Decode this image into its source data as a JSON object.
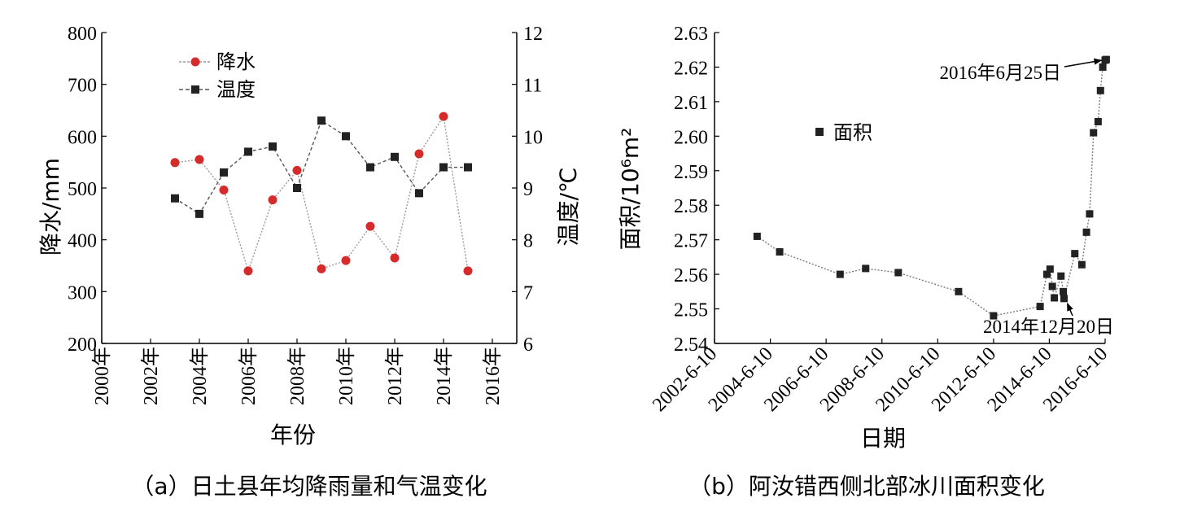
{
  "chart_data": [
    {
      "id": "a",
      "type": "line",
      "caption": "（a）日土县年均降雨量和气温变化",
      "xlabel": "年份",
      "ylabel_left": "降水/mm",
      "ylabel_right": "温度/℃",
      "x_ticks": [
        "2000年",
        "2002年",
        "2004年",
        "2006年",
        "2008年",
        "2010年",
        "2012年",
        "2014年",
        "2016年"
      ],
      "xlim": [
        2000,
        2017
      ],
      "ylim_left": [
        200,
        800
      ],
      "y_ticks_left": [
        "200",
        "300",
        "400",
        "500",
        "600",
        "700",
        "800"
      ],
      "ylim_right": [
        6,
        12
      ],
      "y_ticks_right": [
        "6",
        "7",
        "8",
        "9",
        "10",
        "11",
        "12"
      ],
      "legend_position": "top-left",
      "series": [
        {
          "name": "降水",
          "axis": "left",
          "marker": "circle",
          "color": "#d62b2b",
          "x": [
            2003,
            2004,
            2005,
            2006,
            2007,
            2008,
            2009,
            2010,
            2011,
            2012,
            2013,
            2014,
            2015
          ],
          "y": [
            549,
            555,
            496,
            340,
            477,
            534,
            344,
            360,
            426,
            365,
            566,
            638,
            340
          ]
        },
        {
          "name": "温度",
          "axis": "right",
          "marker": "square",
          "color": "#222222",
          "x": [
            2003,
            2004,
            2005,
            2006,
            2007,
            2008,
            2009,
            2010,
            2011,
            2012,
            2013,
            2014,
            2015
          ],
          "y": [
            8.8,
            8.5,
            9.3,
            9.7,
            9.8,
            9.0,
            10.3,
            10.0,
            9.4,
            9.6,
            8.9,
            9.4,
            9.4
          ]
        }
      ]
    },
    {
      "id": "b",
      "type": "line",
      "caption": "（b）阿汝错西侧北部冰川面积变化",
      "xlabel": "日期",
      "ylabel": "面积/10⁶m²",
      "x_ticks": [
        "2002-6-10",
        "2004-6-10",
        "2006-6-10",
        "2008-6-10",
        "2010-6-10",
        "2012-6-10",
        "2014-6-10",
        "2016-6-10"
      ],
      "xlim": [
        "2002-6-10",
        "2016-6-10"
      ],
      "ylim": [
        2.54,
        2.63
      ],
      "y_ticks": [
        "2.54",
        "2.55",
        "2.56",
        "2.57",
        "2.58",
        "2.59",
        "2.60",
        "2.61",
        "2.62",
        "2.63"
      ],
      "legend_position": "center-left",
      "series": [
        {
          "name": "面积",
          "marker": "square",
          "color": "#222222",
          "x": [
            "2003-12-20",
            "2004-10-10",
            "2006-12-10",
            "2007-11-10",
            "2009-01-10",
            "2011-03-10",
            "2012-06-10",
            "2014-02-10",
            "2014-05-10",
            "2014-06-20",
            "2014-07-20",
            "2014-08-15",
            "2014-11-10",
            "2014-12-10",
            "2014-12-20",
            "2015-05-10",
            "2015-08-10",
            "2015-10-10",
            "2015-11-20",
            "2016-01-10",
            "2016-03-10",
            "2016-04-10",
            "2016-05-10",
            "2016-06-10",
            "2016-06-25"
          ],
          "y": [
            2.571,
            2.5665,
            2.56,
            2.5617,
            2.5605,
            2.555,
            2.548,
            2.5507,
            2.56,
            2.5615,
            2.5565,
            2.5532,
            2.5595,
            2.555,
            2.553,
            2.566,
            2.5628,
            2.5722,
            2.5775,
            2.601,
            2.6042,
            2.6132,
            2.62,
            2.622,
            2.6222
          ]
        }
      ],
      "annotations": [
        {
          "text": "2016年6月25日",
          "x": "2016-06-25",
          "y": 2.6222
        },
        {
          "text": "2014年12月20日",
          "x": "2014-12-20",
          "y": 2.553
        }
      ]
    }
  ]
}
